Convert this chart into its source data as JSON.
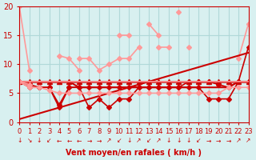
{
  "bg_color": "#d8f0f0",
  "grid_color": "#b0d8d8",
  "title": "",
  "xlabel": "Vent moyen/en rafales ( km/h )",
  "ylabel": "",
  "xlim": [
    0,
    23
  ],
  "ylim": [
    0,
    20
  ],
  "xticks": [
    0,
    1,
    2,
    3,
    4,
    5,
    6,
    7,
    8,
    9,
    10,
    11,
    12,
    13,
    14,
    15,
    16,
    17,
    18,
    19,
    20,
    21,
    22,
    23
  ],
  "yticks": [
    0,
    5,
    10,
    15,
    20
  ],
  "series": [
    {
      "x": [
        0,
        1,
        2,
        3,
        4,
        5,
        6,
        7,
        8,
        9,
        10,
        11,
        12,
        13,
        14,
        15,
        16,
        17,
        18,
        19,
        20,
        21,
        22,
        23
      ],
      "y": [
        20,
        9,
        null,
        null,
        null,
        null,
        null,
        null,
        null,
        null,
        null,
        null,
        null,
        null,
        null,
        null,
        null,
        null,
        null,
        null,
        null,
        null,
        null,
        null
      ],
      "color": "#ff9999",
      "lw": 1.2,
      "marker": "D",
      "ms": 3
    },
    {
      "x": [
        0,
        1,
        2,
        3,
        4,
        5,
        6,
        7,
        8,
        9,
        10,
        11,
        12,
        13,
        14,
        15,
        16,
        17,
        18,
        19,
        20,
        21,
        22,
        23
      ],
      "y": [
        null,
        null,
        null,
        null,
        11.5,
        11,
        9,
        null,
        null,
        null,
        15,
        15,
        null,
        17,
        15,
        null,
        19,
        null,
        null,
        null,
        null,
        null,
        11,
        17
      ],
      "color": "#ff9999",
      "lw": 1.2,
      "marker": "D",
      "ms": 3
    },
    {
      "x": [
        0,
        1,
        2,
        3,
        4,
        5,
        6,
        7,
        8,
        9,
        10,
        11,
        12,
        13,
        14,
        15,
        16,
        17,
        18,
        19,
        20,
        21,
        22,
        23
      ],
      "y": [
        7,
        7,
        7,
        7,
        7,
        7,
        7,
        7,
        7,
        7,
        7,
        7,
        7,
        7,
        7,
        7,
        7,
        7,
        7,
        7,
        7,
        7,
        7,
        7
      ],
      "color": "#cc0000",
      "lw": 1.8,
      "marker": "^",
      "ms": 4
    },
    {
      "x": [
        0,
        1,
        2,
        3,
        4,
        5,
        6,
        7,
        8,
        9,
        10,
        11,
        12,
        13,
        14,
        15,
        16,
        17,
        18,
        19,
        20,
        21,
        22,
        23
      ],
      "y": [
        7,
        6.5,
        6,
        6,
        2.5,
        6,
        6,
        2.5,
        4,
        2.5,
        4,
        4,
        6,
        6,
        6,
        6,
        6,
        6,
        6,
        4,
        4,
        4,
        7,
        7
      ],
      "color": "#cc0000",
      "lw": 1.2,
      "marker": "D",
      "ms": 3
    },
    {
      "x": [
        0,
        1,
        2,
        3,
        4,
        5,
        6,
        7,
        8,
        9,
        10,
        11,
        12,
        13,
        14,
        15,
        16,
        17,
        18,
        19,
        20,
        21,
        22,
        23
      ],
      "y": [
        7,
        7,
        7,
        7,
        7,
        7,
        6,
        6,
        6,
        6,
        6,
        6,
        6,
        6,
        6,
        6,
        6,
        6,
        6,
        6,
        6,
        6,
        7,
        7
      ],
      "color": "#cc0000",
      "lw": 1.5,
      "marker": null,
      "ms": 0
    },
    {
      "x": [
        0,
        1,
        2,
        3,
        4,
        5,
        6,
        7,
        8,
        9,
        10,
        11,
        12,
        13,
        14,
        15,
        16,
        17,
        18,
        19,
        20,
        21,
        22,
        23
      ],
      "y": [
        0.5,
        1,
        1.5,
        2,
        2.5,
        3,
        3.5,
        4,
        4.5,
        5,
        5.5,
        6,
        6.5,
        7,
        7.5,
        8,
        8.5,
        9,
        9.5,
        10,
        10.5,
        11,
        11.5,
        12
      ],
      "color": "#cc0000",
      "lw": 1.5,
      "marker": null,
      "ms": 0
    },
    {
      "x": [
        0,
        1,
        2,
        3,
        4,
        5,
        6,
        7,
        8,
        9,
        10,
        11,
        12,
        13,
        14,
        15,
        16,
        17,
        18,
        19,
        20,
        21,
        22,
        23
      ],
      "y": [
        7,
        6,
        6,
        6,
        3,
        6,
        6,
        6,
        6,
        6,
        6,
        6,
        6,
        6,
        6,
        6,
        6,
        7,
        7,
        7,
        6.5,
        6,
        7,
        13
      ],
      "color": "#cc0000",
      "lw": 1.2,
      "marker": "D",
      "ms": 3
    },
    {
      "x": [
        0,
        1,
        2,
        3,
        4,
        5,
        6,
        7,
        8,
        9,
        10,
        11,
        12,
        13,
        14,
        15,
        16,
        17,
        18,
        19,
        20,
        21,
        22,
        23
      ],
      "y": [
        7,
        7,
        7,
        7,
        7,
        7,
        7,
        7,
        7,
        7,
        7,
        7,
        7,
        7,
        7,
        7,
        7,
        7,
        7,
        7,
        7,
        7,
        7,
        7
      ],
      "color": "#ff9999",
      "lw": 1.2,
      "marker": null,
      "ms": 0
    },
    {
      "x": [
        0,
        1,
        2,
        3,
        4,
        5,
        6,
        7,
        8,
        9,
        10,
        11,
        12,
        13,
        14,
        15,
        16,
        17,
        18,
        19,
        20,
        21,
        22,
        23
      ],
      "y": [
        7,
        6,
        6,
        5.5,
        5,
        5,
        5,
        5,
        5,
        5,
        5,
        5,
        5,
        5,
        5,
        5,
        5,
        5,
        5,
        5,
        5,
        6,
        6,
        6
      ],
      "color": "#ff9999",
      "lw": 1.2,
      "marker": "D",
      "ms": 3
    },
    {
      "x": [
        0,
        1,
        2,
        3,
        4,
        5,
        6,
        7,
        8,
        9,
        10,
        11,
        12,
        13,
        14,
        15,
        16,
        17,
        18,
        19,
        20,
        21,
        22,
        23
      ],
      "y": [
        7,
        6.5,
        null,
        null,
        null,
        null,
        11,
        11,
        9,
        10,
        11,
        11,
        13,
        null,
        13,
        13,
        null,
        13,
        null,
        null,
        null,
        null,
        null,
        17
      ],
      "color": "#ff9999",
      "lw": 1.2,
      "marker": "D",
      "ms": 3
    }
  ],
  "arrows": [
    "↓",
    "↘",
    "↓",
    "↙",
    "←",
    "←",
    "←",
    "→",
    "→",
    "↗",
    "↙",
    "↓",
    "↗",
    "↙",
    "↗",
    "↓",
    "↓",
    "↓",
    "↙",
    "→",
    "→",
    "→",
    "↗",
    "↗"
  ],
  "xlabel_color": "#cc0000",
  "tick_color": "#cc0000",
  "arrow_color": "#cc0000"
}
